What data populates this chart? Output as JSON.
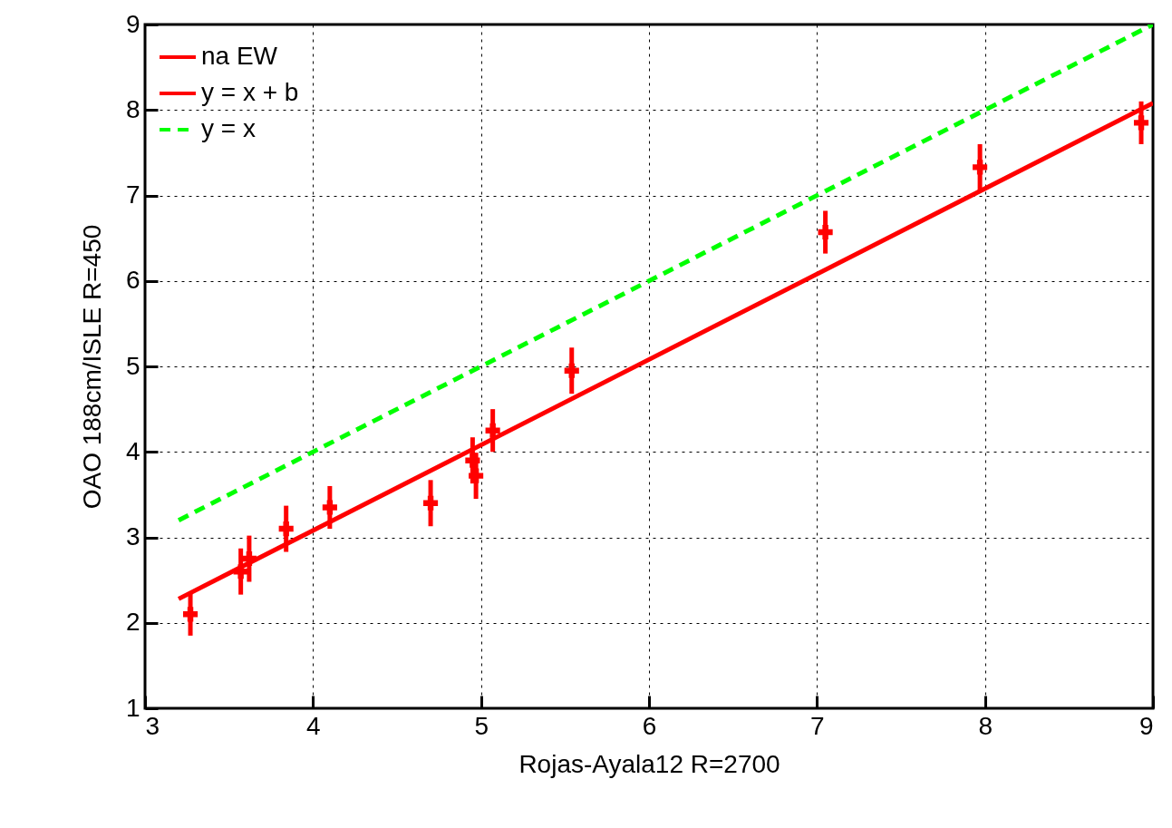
{
  "chart_data": {
    "type": "scatter",
    "xlabel": "Rojas-Ayala12 R=2700",
    "ylabel": "OAO 188cm/ISLE R=450",
    "xlim": [
      3,
      9
    ],
    "xticks": [
      3,
      4,
      5,
      6,
      7,
      8,
      9
    ],
    "ylim": [
      1,
      9
    ],
    "yticks": [
      1,
      2,
      3,
      4,
      5,
      6,
      7,
      8,
      9
    ],
    "grid": true,
    "legend": "top left",
    "series": [
      {
        "name": "na EW",
        "type": "scatter",
        "color": "#ff0000",
        "marker": "cross",
        "x": [
          3.27,
          3.57,
          3.62,
          3.84,
          4.1,
          4.7,
          4.95,
          4.97,
          5.07,
          5.54,
          7.05,
          7.97,
          8.93
        ],
        "values": [
          2.1,
          2.6,
          2.75,
          3.1,
          3.35,
          3.4,
          3.9,
          3.72,
          4.25,
          4.95,
          6.57,
          7.33,
          7.85
        ],
        "errors": [
          0.25,
          0.27,
          0.27,
          0.27,
          0.25,
          0.27,
          0.27,
          0.27,
          0.25,
          0.27,
          0.25,
          0.27,
          0.25
        ]
      },
      {
        "name": "y = x + b",
        "type": "line",
        "color": "#ff0000",
        "line_style": "solid",
        "x": [
          3.2,
          9
        ],
        "values": [
          2.28,
          8.08
        ]
      },
      {
        "name": "y = x",
        "type": "line",
        "color": "#00ff00",
        "line_style": "dashed",
        "x": [
          3.2,
          9
        ],
        "values": [
          3.2,
          9
        ]
      }
    ]
  }
}
